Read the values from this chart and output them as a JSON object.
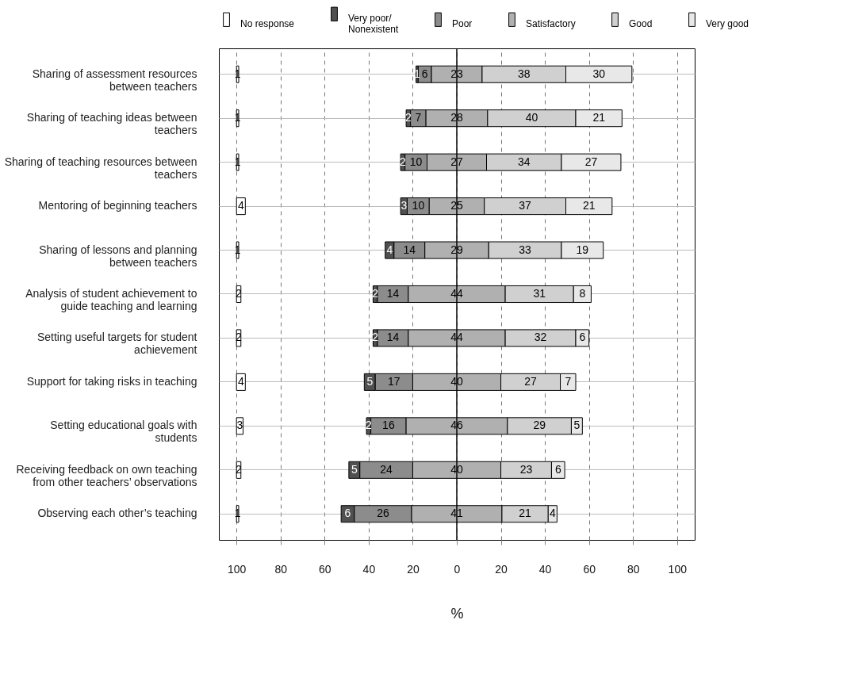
{
  "chart_data": {
    "type": "bar",
    "orientation": "horizontal",
    "xlabel": "%",
    "categories": [
      "Sharing of assessment resources between teachers",
      "Sharing of teaching ideas between teachers",
      "Sharing of teaching resources between teachers",
      "Mentoring of beginning teachers",
      "Sharing of lessons and planning between teachers",
      "Analysis of student achievement to guide teaching and learning",
      "Setting useful targets for student achievement",
      "Support for taking risks in teaching",
      "Setting educational goals with students",
      "Receiving feedback on own teaching from other teachers’ observations",
      "Observing each other’s teaching"
    ],
    "series": [
      {
        "name": "No response",
        "color": "#ffffff",
        "values": [
          1,
          1,
          1,
          4,
          1,
          2,
          2,
          4,
          3,
          2,
          1
        ],
        "base": [
          -100,
          -100,
          -100,
          -100,
          -100,
          -100,
          -100,
          -100,
          -100,
          -100,
          -100
        ]
      },
      {
        "name": "Very poor/Nonexistent",
        "color": "#505050",
        "values": [
          1,
          2,
          2,
          3,
          4,
          2,
          2,
          5,
          2,
          5,
          6
        ],
        "base": [
          -18.5,
          -23,
          -25.5,
          -25.5,
          -32.5,
          -38,
          -38,
          -42,
          -41,
          -49,
          -52.5
        ]
      },
      {
        "name": "Poor",
        "color": "#8c8c8c",
        "values": [
          6,
          7,
          10,
          10,
          14,
          14,
          14,
          17,
          16,
          24,
          26
        ],
        "base": [
          -17.5,
          -21,
          -23.5,
          -22.5,
          -28.5,
          -36,
          -36,
          -37,
          -39,
          -44,
          -46.5
        ]
      },
      {
        "name": "Satisfactory",
        "color": "#b0b0b0",
        "values": [
          23,
          28,
          27,
          25,
          29,
          44,
          44,
          40,
          46,
          40,
          41
        ],
        "base": [
          -11.5,
          -14,
          -13.5,
          -12.5,
          -14.5,
          -22,
          -22,
          -20,
          -23,
          -20,
          -20.5
        ]
      },
      {
        "name": "Good",
        "color": "#d0d0d0",
        "values": [
          38,
          40,
          34,
          37,
          33,
          31,
          32,
          27,
          29,
          23,
          21
        ],
        "base": [
          11.5,
          14,
          13.5,
          12.5,
          14.5,
          22,
          22,
          20,
          23,
          20,
          20.5
        ]
      },
      {
        "name": "Very good",
        "color": "#e8e8e8",
        "values": [
          30,
          21,
          27,
          21,
          19,
          8,
          6,
          7,
          5,
          6,
          4
        ],
        "base": [
          49.5,
          54,
          47.5,
          49.5,
          47.5,
          53,
          54,
          47,
          52,
          43,
          41.5
        ]
      }
    ],
    "xlim": [
      -108,
      108
    ],
    "xticks": [
      {
        "value": -100,
        "label": "100"
      },
      {
        "value": -80,
        "label": "80"
      },
      {
        "value": -60,
        "label": "60"
      },
      {
        "value": -40,
        "label": "40"
      },
      {
        "value": -20,
        "label": "20"
      },
      0,
      20,
      40,
      60,
      80,
      100
    ],
    "ref_lines": [
      {
        "axis": "x",
        "value": 0
      }
    ],
    "grid": true,
    "legend": "top",
    "data_labels": true
  }
}
